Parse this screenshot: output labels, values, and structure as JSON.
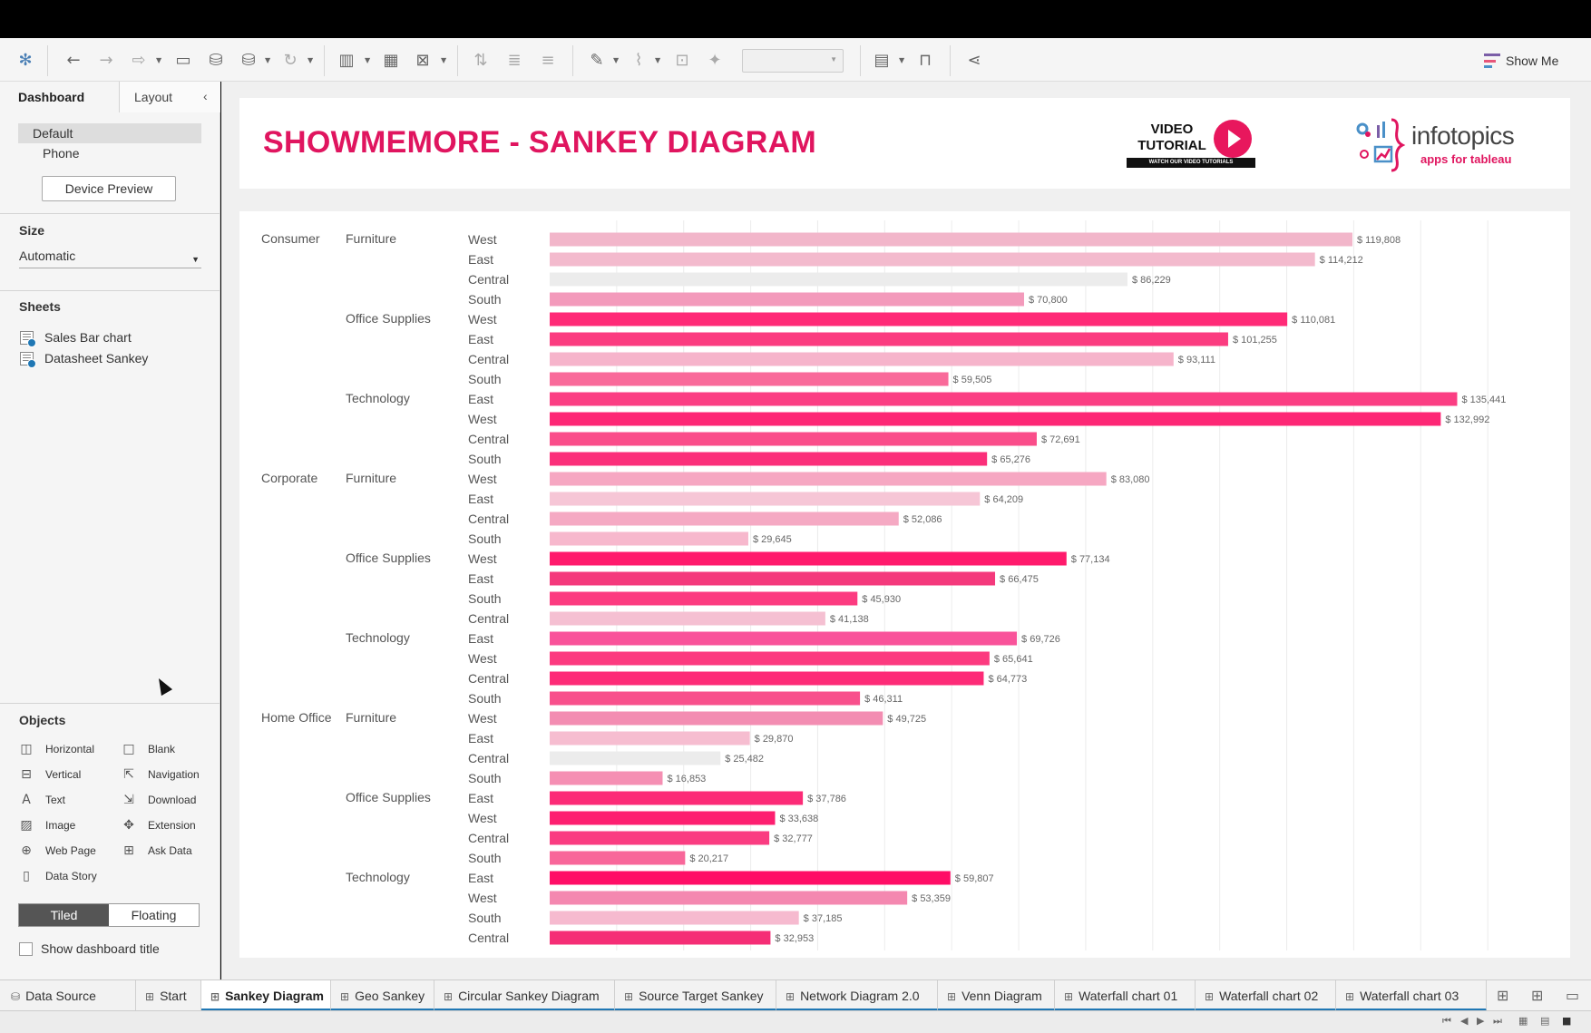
{
  "toolbar": {
    "icons": [
      "tableau-logo-icon",
      "undo-icon",
      "redo-icon",
      "replay-icon",
      "save-icon",
      "new-datasource-icon",
      "pause-updates-icon",
      "refresh-icon",
      "new-worksheet-icon",
      "duplicate-icon",
      "clear-icon",
      "swap-icon",
      "sort-asc-icon",
      "sort-desc-icon",
      "highlight-icon",
      "group-icon",
      "labels-icon",
      "pin-icon",
      "fit-select",
      "show-cards-icon",
      "presentation-icon",
      "share-icon"
    ],
    "show_me_label": "Show Me"
  },
  "sidebar": {
    "tab_dashboard": "Dashboard",
    "tab_layout": "Layout",
    "device_default": "Default",
    "device_phone": "Phone",
    "device_preview": "Device Preview",
    "size_heading": "Size",
    "size_value": "Automatic",
    "sheets_heading": "Sheets",
    "sheets": [
      "Sales Bar chart",
      "Datasheet Sankey"
    ],
    "objects_heading": "Objects",
    "objects": [
      {
        "label": "Horizontal",
        "icon": "horizontal-icon"
      },
      {
        "label": "Blank",
        "icon": "blank-icon"
      },
      {
        "label": "Vertical",
        "icon": "vertical-icon"
      },
      {
        "label": "Navigation",
        "icon": "navigation-icon"
      },
      {
        "label": "Text",
        "icon": "text-icon"
      },
      {
        "label": "Download",
        "icon": "download-icon"
      },
      {
        "label": "Image",
        "icon": "image-icon"
      },
      {
        "label": "Extension",
        "icon": "extension-icon"
      },
      {
        "label": "Web Page",
        "icon": "web-page-icon"
      },
      {
        "label": "Ask Data",
        "icon": "ask-data-icon"
      },
      {
        "label": "Data Story",
        "icon": "data-story-icon"
      }
    ],
    "tiled": "Tiled",
    "floating": "Floating",
    "show_title": "Show dashboard title"
  },
  "dashboard": {
    "title": "SHOWMEMORE - SANKEY DIAGRAM",
    "video_logo_line1": "VIDEO",
    "video_logo_line2": "TUTORIAL",
    "video_logo_caption": "WATCH OUR VIDEO TUTORIALS",
    "brand_name": "infotopics",
    "brand_tagline": "apps for tableau"
  },
  "chart_data": {
    "type": "bar",
    "orientation": "horizontal",
    "value_format": "$",
    "xlim": [
      0,
      140000
    ],
    "grid": true,
    "rows": [
      {
        "segment": "Consumer",
        "category": "Furniture",
        "region": "West",
        "value": 119808,
        "color": "#f2b6ca"
      },
      {
        "segment": "",
        "category": "",
        "region": "East",
        "value": 114212,
        "color": "#f3bacd"
      },
      {
        "segment": "",
        "category": "",
        "region": "Central",
        "value": 86229,
        "color": "#ececec"
      },
      {
        "segment": "",
        "category": "",
        "region": "South",
        "value": 70800,
        "color": "#f39abb"
      },
      {
        "segment": "",
        "category": "Office Supplies",
        "region": "West",
        "value": 110081,
        "color": "#ff2a77"
      },
      {
        "segment": "",
        "category": "",
        "region": "East",
        "value": 101255,
        "color": "#fb3c80"
      },
      {
        "segment": "",
        "category": "",
        "region": "Central",
        "value": 93111,
        "color": "#f6b4cb"
      },
      {
        "segment": "",
        "category": "",
        "region": "South",
        "value": 59505,
        "color": "#f96a9a"
      },
      {
        "segment": "",
        "category": "Technology",
        "region": "East",
        "value": 135441,
        "color": "#fb3e83"
      },
      {
        "segment": "",
        "category": "",
        "region": "West",
        "value": 132992,
        "color": "#fd2775"
      },
      {
        "segment": "",
        "category": "",
        "region": "Central",
        "value": 72691,
        "color": "#fa4d8a"
      },
      {
        "segment": "",
        "category": "",
        "region": "South",
        "value": 65276,
        "color": "#fb2f7a"
      },
      {
        "segment": "Corporate",
        "category": "Furniture",
        "region": "West",
        "value": 83080,
        "color": "#f6a7c2"
      },
      {
        "segment": "",
        "category": "",
        "region": "East",
        "value": 64209,
        "color": "#f6c6d6"
      },
      {
        "segment": "",
        "category": "",
        "region": "Central",
        "value": 52086,
        "color": "#f5a9c3"
      },
      {
        "segment": "",
        "category": "",
        "region": "South",
        "value": 29645,
        "color": "#f7b8cd"
      },
      {
        "segment": "",
        "category": "Office Supplies",
        "region": "West",
        "value": 77134,
        "color": "#ff1a6c"
      },
      {
        "segment": "",
        "category": "",
        "region": "East",
        "value": 66475,
        "color": "#f4397c"
      },
      {
        "segment": "",
        "category": "",
        "region": "South",
        "value": 45930,
        "color": "#fc3b80"
      },
      {
        "segment": "",
        "category": "",
        "region": "Central",
        "value": 41138,
        "color": "#f5c0d2"
      },
      {
        "segment": "",
        "category": "Technology",
        "region": "East",
        "value": 69726,
        "color": "#f9539a"
      },
      {
        "segment": "",
        "category": "",
        "region": "West",
        "value": 65641,
        "color": "#fc3a7f"
      },
      {
        "segment": "",
        "category": "",
        "region": "Central",
        "value": 64773,
        "color": "#fd2b77"
      },
      {
        "segment": "",
        "category": "",
        "region": "South",
        "value": 46311,
        "color": "#f8508c"
      },
      {
        "segment": "Home Office",
        "category": "Furniture",
        "region": "West",
        "value": 49725,
        "color": "#f38db2"
      },
      {
        "segment": "",
        "category": "",
        "region": "East",
        "value": 29870,
        "color": "#f6bdd0"
      },
      {
        "segment": "",
        "category": "",
        "region": "Central",
        "value": 25482,
        "color": "#ececec"
      },
      {
        "segment": "",
        "category": "",
        "region": "South",
        "value": 16853,
        "color": "#f58fb3"
      },
      {
        "segment": "",
        "category": "Office Supplies",
        "region": "East",
        "value": 37786,
        "color": "#fc2b77"
      },
      {
        "segment": "",
        "category": "",
        "region": "West",
        "value": 33638,
        "color": "#fd1f70"
      },
      {
        "segment": "",
        "category": "",
        "region": "Central",
        "value": 32777,
        "color": "#fa3c81"
      },
      {
        "segment": "",
        "category": "",
        "region": "South",
        "value": 20217,
        "color": "#f8679a"
      },
      {
        "segment": "",
        "category": "Technology",
        "region": "East",
        "value": 59807,
        "color": "#ff0d66"
      },
      {
        "segment": "",
        "category": "",
        "region": "West",
        "value": 53359,
        "color": "#f488b0"
      },
      {
        "segment": "",
        "category": "",
        "region": "South",
        "value": 37185,
        "color": "#f6bacf"
      },
      {
        "segment": "",
        "category": "",
        "region": "Central",
        "value": 32953,
        "color": "#f52e76"
      }
    ]
  },
  "tabs": {
    "data_source": "Data Source",
    "sheets": [
      "Start",
      "Sankey Diagram",
      "Geo Sankey",
      "Circular Sankey Diagram",
      "Source Target Sankey",
      "Network Diagram 2.0",
      "Venn Diagram",
      "Waterfall chart 01",
      "Waterfall chart 02",
      "Waterfall chart 03"
    ],
    "active": "Sankey Diagram"
  }
}
